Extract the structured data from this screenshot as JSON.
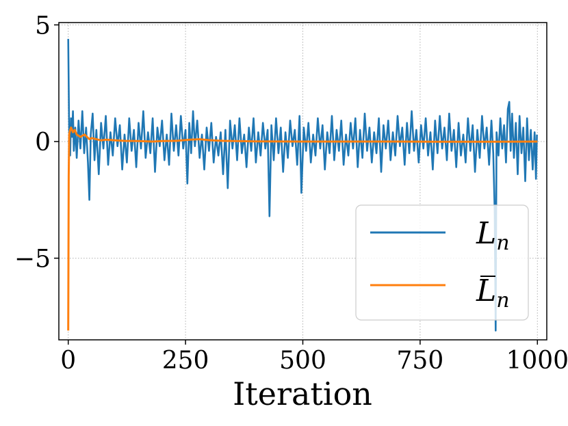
{
  "chart_data": {
    "type": "line",
    "title": "",
    "xlabel": "Iteration",
    "ylabel": "",
    "xlim": [
      -20,
      1020
    ],
    "ylim": [
      -8.5,
      5.1
    ],
    "xticks": [
      0,
      250,
      500,
      750,
      1000
    ],
    "xtick_labels": [
      "0",
      "250",
      "500",
      "750",
      "1000"
    ],
    "yticks": [
      5,
      0,
      -5
    ],
    "ytick_labels": [
      "5",
      "0",
      "−5"
    ],
    "grid": true,
    "grid_style": "dotted",
    "legend_placement": "lower-right",
    "series": [
      {
        "name": "L_n",
        "legend_main": "L",
        "legend_sub": "n",
        "color": "#1f77b4",
        "description_kind": "noisy",
        "points": [
          [
            0,
            4.4
          ],
          [
            2,
            0.4
          ],
          [
            4,
            -0.6
          ],
          [
            6,
            1.0
          ],
          [
            8,
            0.2
          ],
          [
            10,
            1.3
          ],
          [
            12,
            -0.4
          ],
          [
            15,
            0.6
          ],
          [
            18,
            -0.7
          ],
          [
            22,
            0.9
          ],
          [
            26,
            -0.3
          ],
          [
            30,
            1.3
          ],
          [
            34,
            -0.5
          ],
          [
            38,
            0.6
          ],
          [
            42,
            -0.9
          ],
          [
            45,
            -2.5
          ],
          [
            48,
            0.3
          ],
          [
            52,
            1.2
          ],
          [
            56,
            -0.8
          ],
          [
            60,
            0.5
          ],
          [
            65,
            -1.4
          ],
          [
            70,
            0.8
          ],
          [
            75,
            -0.3
          ],
          [
            80,
            1.1
          ],
          [
            85,
            -1.0
          ],
          [
            90,
            0.4
          ],
          [
            95,
            -0.6
          ],
          [
            100,
            1.0
          ],
          [
            105,
            -0.2
          ],
          [
            110,
            0.7
          ],
          [
            115,
            -1.2
          ],
          [
            120,
            0.3
          ],
          [
            125,
            -0.9
          ],
          [
            130,
            1.0
          ],
          [
            135,
            -0.4
          ],
          [
            140,
            0.5
          ],
          [
            145,
            -1.1
          ],
          [
            150,
            0.8
          ],
          [
            155,
            -0.3
          ],
          [
            160,
            1.3
          ],
          [
            165,
            -0.7
          ],
          [
            170,
            0.4
          ],
          [
            175,
            -0.5
          ],
          [
            180,
            1.0
          ],
          [
            185,
            -1.3
          ],
          [
            190,
            0.6
          ],
          [
            195,
            -0.2
          ],
          [
            200,
            0.9
          ],
          [
            205,
            -0.8
          ],
          [
            210,
            0.3
          ],
          [
            215,
            -1.0
          ],
          [
            220,
            1.2
          ],
          [
            225,
            -0.4
          ],
          [
            230,
            0.7
          ],
          [
            235,
            -0.6
          ],
          [
            240,
            1.1
          ],
          [
            245,
            -0.3
          ],
          [
            250,
            0.5
          ],
          [
            254,
            -1.8
          ],
          [
            258,
            0.8
          ],
          [
            262,
            -0.5
          ],
          [
            266,
            1.3
          ],
          [
            270,
            -0.2
          ],
          [
            275,
            0.9
          ],
          [
            280,
            -0.7
          ],
          [
            285,
            0.3
          ],
          [
            290,
            -1.2
          ],
          [
            295,
            0.6
          ],
          [
            300,
            -0.4
          ],
          [
            305,
            0.8
          ],
          [
            310,
            -0.9
          ],
          [
            315,
            0.2
          ],
          [
            320,
            -0.6
          ],
          [
            325,
            0.4
          ],
          [
            330,
            -1.4
          ],
          [
            335,
            0.5
          ],
          [
            340,
            -2.0
          ],
          [
            345,
            0.9
          ],
          [
            350,
            -0.3
          ],
          [
            355,
            0.7
          ],
          [
            360,
            -0.8
          ],
          [
            365,
            1.0
          ],
          [
            370,
            -0.5
          ],
          [
            375,
            0.3
          ],
          [
            380,
            -1.1
          ],
          [
            385,
            0.6
          ],
          [
            390,
            -0.4
          ],
          [
            395,
            1.0
          ],
          [
            400,
            -0.9
          ],
          [
            405,
            0.4
          ],
          [
            410,
            -0.6
          ],
          [
            415,
            0.8
          ],
          [
            420,
            -0.3
          ],
          [
            425,
            0.5
          ],
          [
            429,
            -3.2
          ],
          [
            433,
            0.7
          ],
          [
            438,
            -0.8
          ],
          [
            443,
            1.0
          ],
          [
            448,
            -0.5
          ],
          [
            453,
            0.6
          ],
          [
            458,
            -1.3
          ],
          [
            463,
            0.4
          ],
          [
            468,
            -0.7
          ],
          [
            473,
            0.9
          ],
          [
            478,
            -0.2
          ],
          [
            483,
            0.5
          ],
          [
            488,
            -1.0
          ],
          [
            493,
            1.1
          ],
          [
            497,
            -2.2
          ],
          [
            502,
            0.6
          ],
          [
            507,
            -0.4
          ],
          [
            512,
            0.8
          ],
          [
            517,
            -0.9
          ],
          [
            522,
            0.3
          ],
          [
            527,
            -0.6
          ],
          [
            532,
            1.0
          ],
          [
            537,
            -0.3
          ],
          [
            542,
            0.7
          ],
          [
            547,
            -1.2
          ],
          [
            552,
            0.4
          ],
          [
            557,
            -0.5
          ],
          [
            562,
            1.1
          ],
          [
            567,
            -0.8
          ],
          [
            572,
            0.5
          ],
          [
            577,
            -0.4
          ],
          [
            582,
            0.9
          ],
          [
            587,
            -1.0
          ],
          [
            592,
            0.3
          ],
          [
            597,
            -0.6
          ],
          [
            602,
            0.8
          ],
          [
            607,
            -0.3
          ],
          [
            612,
            1.0
          ],
          [
            617,
            -1.1
          ],
          [
            622,
            0.5
          ],
          [
            627,
            -0.7
          ],
          [
            632,
            1.2
          ],
          [
            637,
            -0.4
          ],
          [
            642,
            0.6
          ],
          [
            647,
            -0.9
          ],
          [
            652,
            0.4
          ],
          [
            657,
            -0.5
          ],
          [
            662,
            1.0
          ],
          [
            667,
            -1.3
          ],
          [
            672,
            0.7
          ],
          [
            677,
            -0.3
          ],
          [
            682,
            0.9
          ],
          [
            687,
            -0.8
          ],
          [
            692,
            0.4
          ],
          [
            697,
            -0.6
          ],
          [
            702,
            1.1
          ],
          [
            707,
            -0.2
          ],
          [
            712,
            0.6
          ],
          [
            717,
            -1.0
          ],
          [
            722,
            0.8
          ],
          [
            727,
            -0.5
          ],
          [
            732,
            1.3
          ],
          [
            737,
            -0.4
          ],
          [
            742,
            0.5
          ],
          [
            747,
            -0.9
          ],
          [
            752,
            0.7
          ],
          [
            757,
            -0.3
          ],
          [
            762,
            1.0
          ],
          [
            767,
            -0.6
          ],
          [
            772,
            0.4
          ],
          [
            777,
            -1.2
          ],
          [
            782,
            0.9
          ],
          [
            787,
            -0.5
          ],
          [
            792,
            1.1
          ],
          [
            797,
            -0.3
          ],
          [
            802,
            0.6
          ],
          [
            807,
            -0.8
          ],
          [
            812,
            1.2
          ],
          [
            817,
            -0.4
          ],
          [
            822,
            0.5
          ],
          [
            827,
            -1.1
          ],
          [
            832,
            0.8
          ],
          [
            837,
            -0.6
          ],
          [
            842,
            0.3
          ],
          [
            847,
            -0.9
          ],
          [
            852,
            1.0
          ],
          [
            857,
            -0.4
          ],
          [
            862,
            0.7
          ],
          [
            867,
            -1.3
          ],
          [
            872,
            0.5
          ],
          [
            877,
            -0.7
          ],
          [
            882,
            1.1
          ],
          [
            887,
            -0.3
          ],
          [
            892,
            0.6
          ],
          [
            897,
            -1.0
          ],
          [
            902,
            0.9
          ],
          [
            906,
            -0.5
          ],
          [
            909,
            -3.0
          ],
          [
            911,
            -8.1
          ],
          [
            913,
            0.4
          ],
          [
            917,
            -0.6
          ],
          [
            921,
            1.0
          ],
          [
            925,
            -0.3
          ],
          [
            929,
            0.7
          ],
          [
            933,
            -0.9
          ],
          [
            937,
            1.4
          ],
          [
            940,
            1.7
          ],
          [
            943,
            -0.4
          ],
          [
            946,
            1.2
          ],
          [
            950,
            -0.7
          ],
          [
            954,
            0.8
          ],
          [
            958,
            -1.4
          ],
          [
            962,
            1.1
          ],
          [
            966,
            -0.5
          ],
          [
            970,
            0.6
          ],
          [
            974,
            -1.7
          ],
          [
            978,
            1.0
          ],
          [
            982,
            -0.8
          ],
          [
            986,
            0.5
          ],
          [
            990,
            -1.2
          ],
          [
            994,
            0.4
          ],
          [
            997,
            -1.6
          ],
          [
            999,
            0.3
          ]
        ]
      },
      {
        "name": "̄L_n",
        "legend_main": "L",
        "legend_sub": "n",
        "legend_bar": true,
        "color": "#ff7f0e",
        "points": [
          [
            0,
            -8.1
          ],
          [
            1,
            -1.5
          ],
          [
            2,
            0.3
          ],
          [
            4,
            0.5
          ],
          [
            6,
            0.6
          ],
          [
            8,
            0.5
          ],
          [
            10,
            0.4
          ],
          [
            14,
            0.5
          ],
          [
            18,
            0.3
          ],
          [
            22,
            0.25
          ],
          [
            26,
            0.2
          ],
          [
            30,
            0.25
          ],
          [
            35,
            0.3
          ],
          [
            40,
            0.2
          ],
          [
            45,
            0.1
          ],
          [
            50,
            0.15
          ],
          [
            60,
            0.1
          ],
          [
            70,
            0.05
          ],
          [
            80,
            0.08
          ],
          [
            100,
            0.05
          ],
          [
            120,
            0.03
          ],
          [
            150,
            0.02
          ],
          [
            180,
            0.0
          ],
          [
            200,
            0.02
          ],
          [
            230,
            0.03
          ],
          [
            260,
            0.08
          ],
          [
            280,
            0.1
          ],
          [
            300,
            0.06
          ],
          [
            330,
            0.03
          ],
          [
            400,
            0.01
          ],
          [
            500,
            0.0
          ],
          [
            600,
            0.0
          ],
          [
            700,
            0.0
          ],
          [
            800,
            -0.01
          ],
          [
            900,
            -0.01
          ],
          [
            1000,
            0.0
          ]
        ]
      }
    ]
  }
}
